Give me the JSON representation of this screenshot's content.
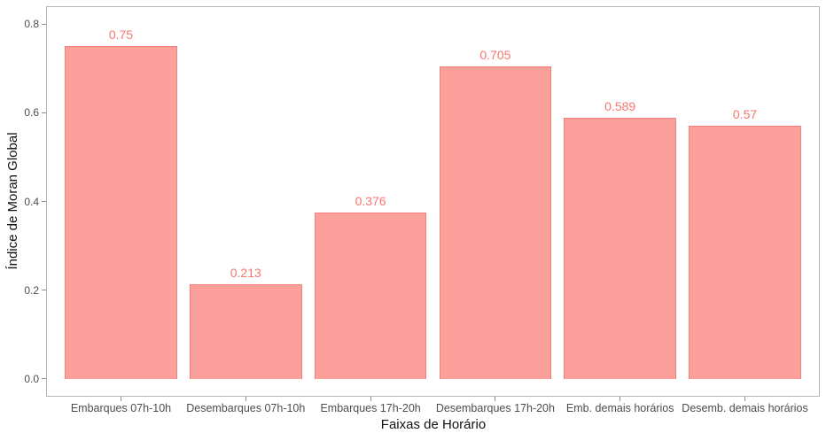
{
  "chart_data": {
    "type": "bar",
    "categories": [
      "Embarques 07h-10h",
      "Desembarques 07h-10h",
      "Embarques 17h-20h",
      "Desembarques 17h-20h",
      "Emb. demais horários",
      "Desemb. demais horários"
    ],
    "values": [
      0.75,
      0.213,
      0.376,
      0.705,
      0.589,
      0.57
    ],
    "value_labels": [
      "0.75",
      "0.213",
      "0.376",
      "0.705",
      "0.589",
      "0.57"
    ],
    "title": "",
    "xlabel": "Faixas de Horário",
    "ylabel": "Índice de Moran Global",
    "ylim": [
      0,
      0.8
    ],
    "y_tick_values": [
      0.0,
      0.2,
      0.4,
      0.6,
      0.8
    ],
    "y_tick_labels": [
      "0.0",
      "0.2",
      "0.4",
      "0.6",
      "0.8"
    ],
    "grid": false,
    "legend_position": "none",
    "bar_fill": "#fa9f99",
    "bar_stroke": "#f58079",
    "value_label_color": "#f8766d",
    "axis_text_color": "#4d4d4d",
    "axis_title_color": "#111111",
    "panel_border_color": "#b6b6b6"
  }
}
